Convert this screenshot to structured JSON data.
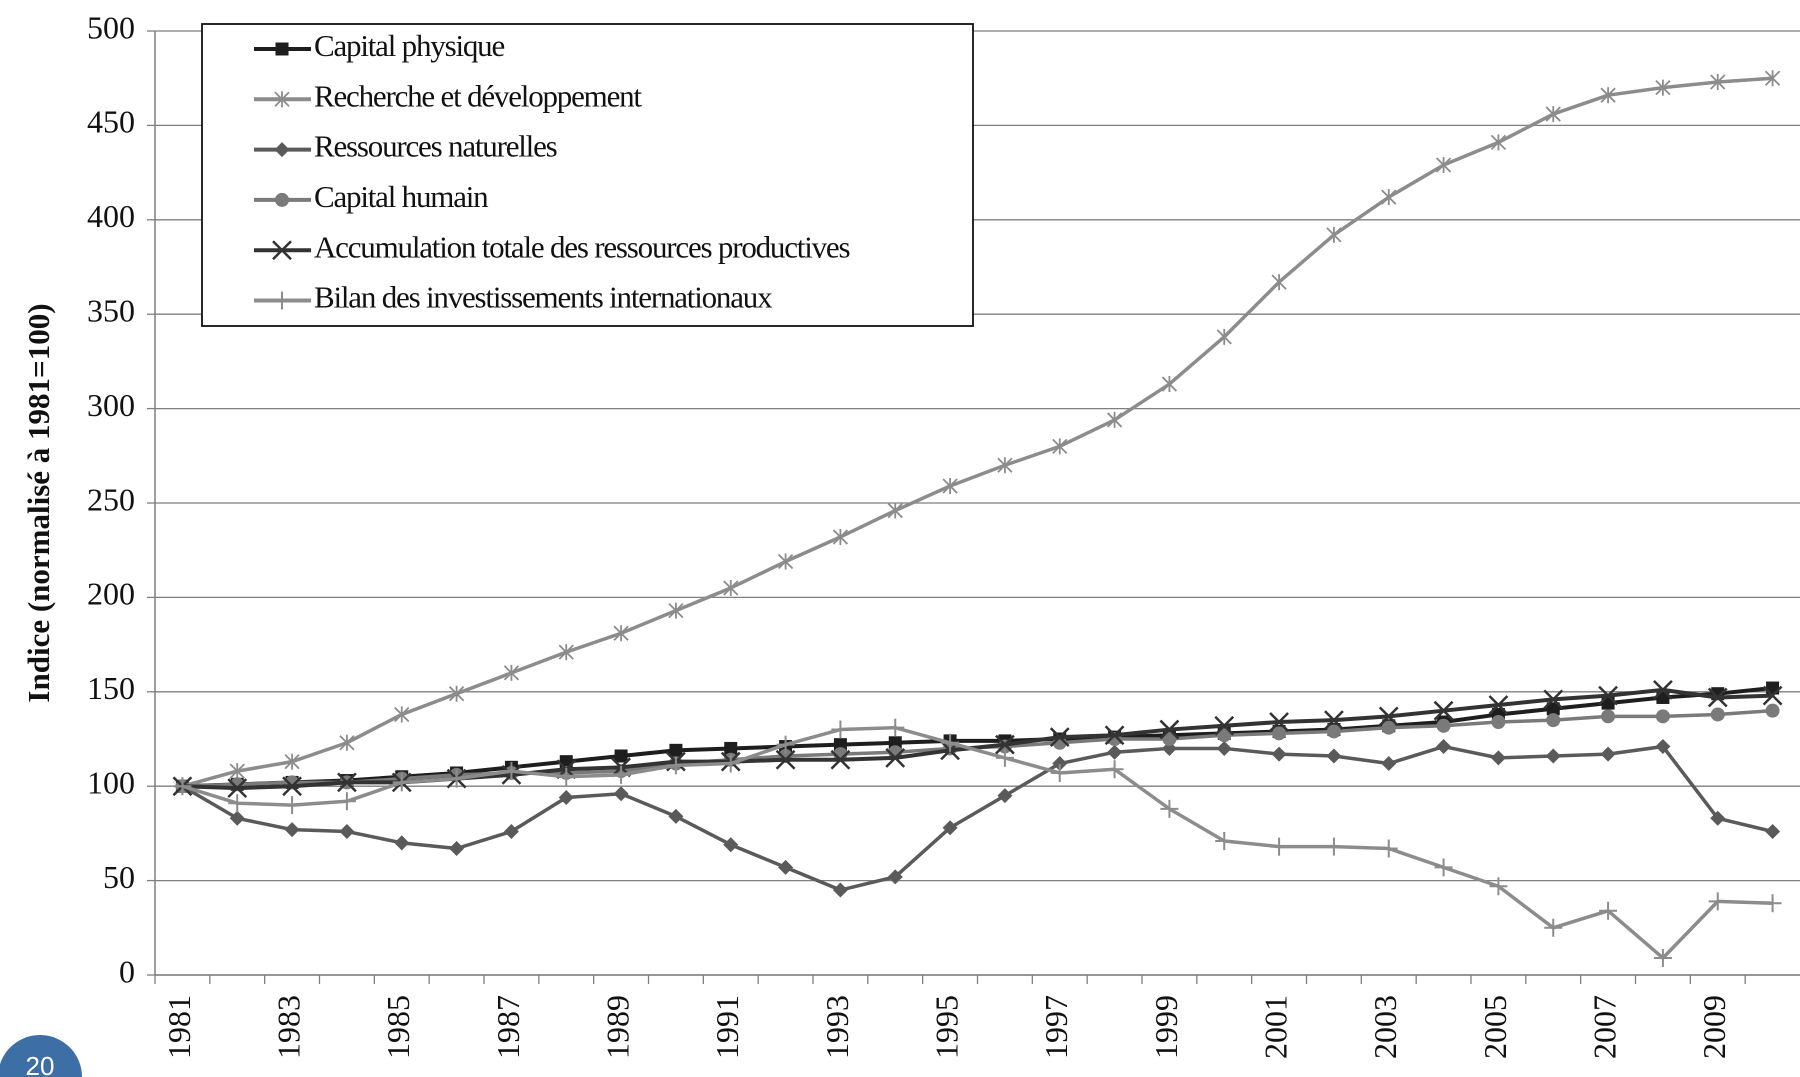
{
  "chart_data": {
    "type": "line",
    "y_label": "Indice (normalisé à 1981=100)",
    "categories": [
      "1981",
      null,
      "1983",
      null,
      "1985",
      null,
      "1987",
      null,
      "1989",
      null,
      "1991",
      null,
      "1993",
      null,
      "1995",
      null,
      "1997",
      null,
      "1999",
      null,
      "2001",
      null,
      "2003",
      null,
      "2005",
      null,
      "2007",
      null,
      "2009",
      null
    ],
    "series": [
      {
        "name": "Capital physique",
        "color": "#1e1e1e",
        "marker": "square",
        "values": [
          100,
          101,
          102,
          103,
          105,
          107,
          110,
          113,
          116,
          119,
          120,
          121,
          122,
          123,
          124,
          124,
          125,
          126,
          127,
          128,
          129,
          130,
          132,
          134,
          138,
          141,
          144,
          147,
          149,
          152
        ]
      },
      {
        "name": "Recherche et développement",
        "color": "#8c8c8c",
        "marker": "asterisk",
        "values": [
          100,
          108,
          113,
          123,
          138,
          149,
          160,
          171,
          181,
          193,
          205,
          219,
          232,
          246,
          259,
          270,
          280,
          294,
          313,
          338,
          367,
          392,
          412,
          429,
          441,
          456,
          466,
          470,
          473,
          475
        ]
      },
      {
        "name": "Ressources naturelles",
        "color": "#5a5a5a",
        "marker": "diamond",
        "values": [
          100,
          83,
          77,
          76,
          70,
          67,
          76,
          94,
          96,
          84,
          69,
          57,
          45,
          52,
          78,
          95,
          112,
          118,
          120,
          120,
          117,
          116,
          112,
          121,
          115,
          116,
          117,
          121,
          83,
          76
        ]
      },
      {
        "name": "Capital humain",
        "color": "#7a7a7a",
        "marker": "circle",
        "values": [
          100,
          101,
          102,
          102,
          104,
          106,
          107,
          107,
          108,
          112,
          114,
          116,
          117,
          118,
          120,
          121,
          123,
          125,
          125,
          127,
          128,
          129,
          131,
          132,
          134,
          135,
          137,
          137,
          138,
          140
        ]
      },
      {
        "name": "Accumulation totale des ressources productives",
        "color": "#333333",
        "marker": "x",
        "values": [
          100,
          99,
          100,
          102,
          102,
          104,
          106,
          109,
          110,
          113,
          113,
          114,
          114,
          115,
          119,
          122,
          126,
          127,
          130,
          132,
          134,
          135,
          137,
          140,
          143,
          146,
          148,
          151,
          147,
          148
        ]
      },
      {
        "name": "Bilan des investissements internationaux",
        "color": "#8c8c8c",
        "marker": "plus",
        "values": [
          100,
          91,
          90,
          92,
          102,
          104,
          108,
          105,
          106,
          111,
          112,
          122,
          130,
          131,
          123,
          115,
          107,
          109,
          88,
          71,
          68,
          68,
          67,
          57,
          47,
          25,
          34,
          9,
          39,
          38
        ]
      }
    ],
    "ylim": [
      0,
      500
    ],
    "yticks": [
      0,
      50,
      100,
      150,
      200,
      250,
      300,
      350,
      400,
      450,
      500
    ],
    "grid": true,
    "legend": "top-left"
  },
  "page_number": "20"
}
